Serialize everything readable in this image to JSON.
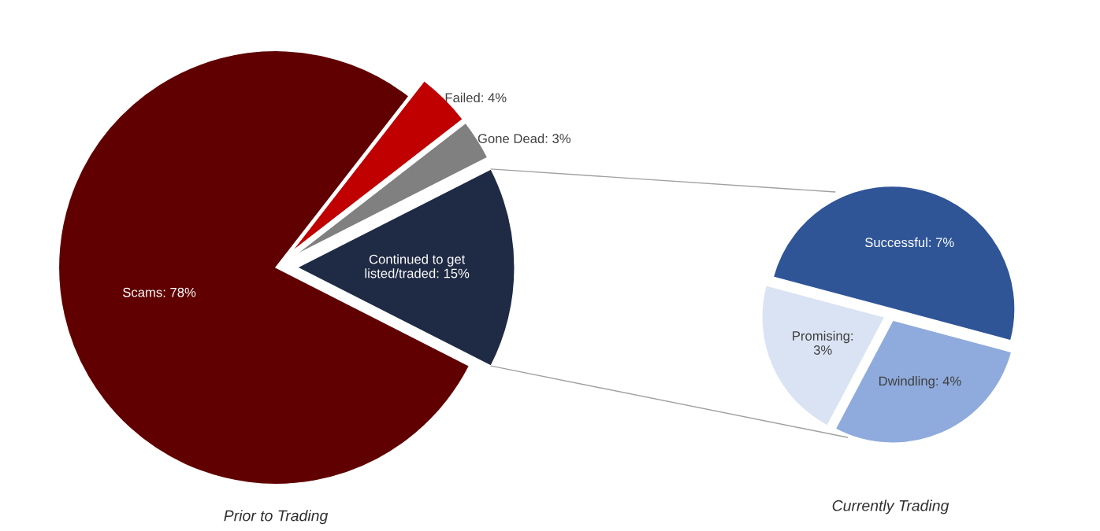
{
  "chart_data": [
    {
      "type": "pie",
      "title": "Prior to Trading",
      "categories": [
        "Continued to get\nlisted/traded: 15%",
        "Gone Dead: 3%",
        "Failed: 4%",
        "Scams: 78%"
      ],
      "values": [
        15,
        3,
        4,
        78
      ],
      "colors": [
        "#1f2a44",
        "#808080",
        "#c00000",
        "#600000"
      ]
    },
    {
      "type": "pie",
      "title": "Currently Trading",
      "categories": [
        "Successful: 7%",
        "Promising:\n3%",
        "Dwindling: 4%"
      ],
      "values": [
        7,
        3,
        4
      ],
      "colors": [
        "#2f5597",
        "#dae3f3",
        "#8faadc"
      ]
    }
  ]
}
